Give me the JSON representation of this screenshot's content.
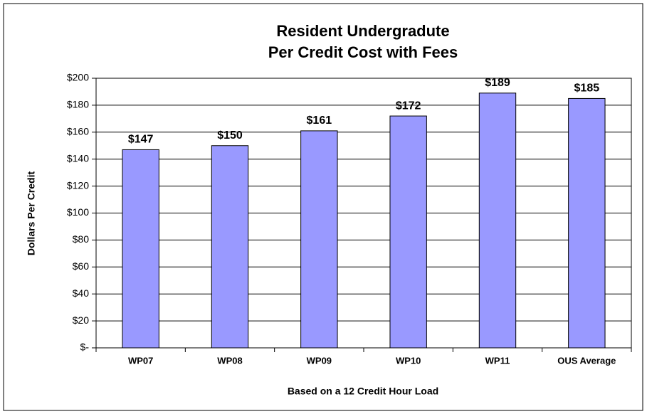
{
  "chart_data": {
    "type": "bar",
    "title": [
      "Resident Undergradute",
      "Per Credit Cost with Fees"
    ],
    "x_label": "Based on a 12 Credit Hour Load",
    "y_label": "Dollars Per Credit",
    "categories": [
      "WP07",
      "WP08",
      "WP09",
      "WP10",
      "WP11",
      "OUS Average"
    ],
    "values": [
      147,
      150,
      161,
      172,
      189,
      185
    ],
    "value_labels": [
      "$147",
      "$150",
      "$161",
      "$172",
      "$189",
      "$185"
    ],
    "color": "#9999ff",
    "ylim": [
      0,
      200
    ],
    "yticks": [
      {
        "value": 0,
        "label": "$-"
      },
      {
        "value": 20,
        "label": "$20"
      },
      {
        "value": 40,
        "label": "$40"
      },
      {
        "value": 60,
        "label": "$60"
      },
      {
        "value": 80,
        "label": "$80"
      },
      {
        "value": 100,
        "label": "$100"
      },
      {
        "value": 120,
        "label": "$120"
      },
      {
        "value": 140,
        "label": "$140"
      },
      {
        "value": 160,
        "label": "$160"
      },
      {
        "value": 180,
        "label": "$180"
      },
      {
        "value": 200,
        "label": "$200"
      }
    ],
    "grid": true
  }
}
